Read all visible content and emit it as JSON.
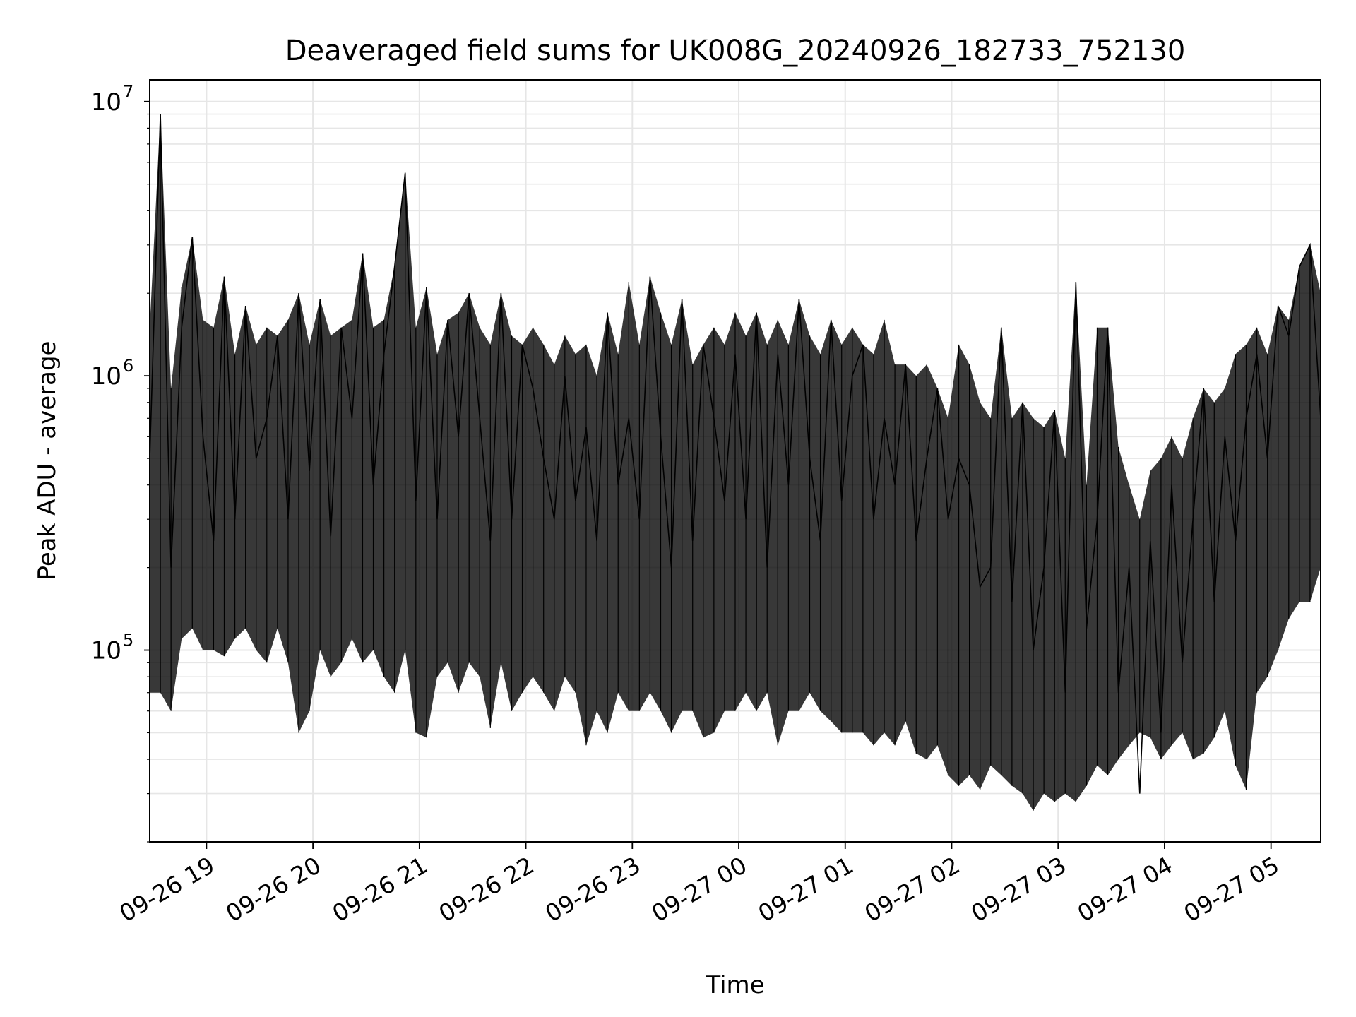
{
  "chart_data": {
    "type": "line",
    "title": "Deaveraged field sums for UK008G_20240926_182733_752130",
    "xlabel": "Time",
    "ylabel": "Peak ADU - average",
    "yscale": "log",
    "ylim": [
      20000,
      12000000
    ],
    "xlim": [
      "2024-09-26T18:28:00",
      "2024-09-27T05:28:00"
    ],
    "grid": true,
    "line_color": "#000000",
    "grid_color": "#e6e6e6",
    "x_ticks": [
      {
        "t": "2024-09-26T19:00:00",
        "label": "09-26 19"
      },
      {
        "t": "2024-09-26T20:00:00",
        "label": "09-26 20"
      },
      {
        "t": "2024-09-26T21:00:00",
        "label": "09-26 21"
      },
      {
        "t": "2024-09-26T22:00:00",
        "label": "09-26 22"
      },
      {
        "t": "2024-09-26T23:00:00",
        "label": "09-26 23"
      },
      {
        "t": "2024-09-27T00:00:00",
        "label": "09-27 00"
      },
      {
        "t": "2024-09-27T01:00:00",
        "label": "09-27 01"
      },
      {
        "t": "2024-09-27T02:00:00",
        "label": "09-27 02"
      },
      {
        "t": "2024-09-27T03:00:00",
        "label": "09-27 03"
      },
      {
        "t": "2024-09-27T04:00:00",
        "label": "09-27 04"
      },
      {
        "t": "2024-09-27T05:00:00",
        "label": "09-27 05"
      }
    ],
    "y_ticks": [
      {
        "value": 100000,
        "base": "10",
        "exp": "5"
      },
      {
        "value": 1000000,
        "base": "10",
        "exp": "6"
      },
      {
        "value": 10000000,
        "base": "10",
        "exp": "7"
      }
    ],
    "series": [
      {
        "x": [
          "2024-09-26T18:28:00",
          "2024-09-26T18:34:00",
          "2024-09-26T18:40:00",
          "2024-09-26T18:46:00",
          "2024-09-26T18:52:00",
          "2024-09-26T18:58:00",
          "2024-09-26T19:04:00",
          "2024-09-26T19:10:00",
          "2024-09-26T19:16:00",
          "2024-09-26T19:22:00",
          "2024-09-26T19:28:00",
          "2024-09-26T19:34:00",
          "2024-09-26T19:40:00",
          "2024-09-26T19:46:00",
          "2024-09-26T19:52:00",
          "2024-09-26T19:58:00",
          "2024-09-26T20:04:00",
          "2024-09-26T20:10:00",
          "2024-09-26T20:16:00",
          "2024-09-26T20:22:00",
          "2024-09-26T20:28:00",
          "2024-09-26T20:34:00",
          "2024-09-26T20:40:00",
          "2024-09-26T20:46:00",
          "2024-09-26T20:52:00",
          "2024-09-26T20:58:00",
          "2024-09-26T21:04:00",
          "2024-09-26T21:10:00",
          "2024-09-26T21:16:00",
          "2024-09-26T21:22:00",
          "2024-09-26T21:28:00",
          "2024-09-26T21:34:00",
          "2024-09-26T21:40:00",
          "2024-09-26T21:46:00",
          "2024-09-26T21:52:00",
          "2024-09-26T21:58:00",
          "2024-09-26T22:04:00",
          "2024-09-26T22:10:00",
          "2024-09-26T22:16:00",
          "2024-09-26T22:22:00",
          "2024-09-26T22:28:00",
          "2024-09-26T22:34:00",
          "2024-09-26T22:40:00",
          "2024-09-26T22:46:00",
          "2024-09-26T22:52:00",
          "2024-09-26T22:58:00",
          "2024-09-26T23:04:00",
          "2024-09-26T23:10:00",
          "2024-09-26T23:16:00",
          "2024-09-26T23:22:00",
          "2024-09-26T23:28:00",
          "2024-09-26T23:34:00",
          "2024-09-26T23:40:00",
          "2024-09-26T23:46:00",
          "2024-09-26T23:52:00",
          "2024-09-26T23:58:00",
          "2024-09-27T00:04:00",
          "2024-09-27T00:10:00",
          "2024-09-27T00:16:00",
          "2024-09-27T00:22:00",
          "2024-09-27T00:28:00",
          "2024-09-27T00:34:00",
          "2024-09-27T00:40:00",
          "2024-09-27T00:46:00",
          "2024-09-27T00:52:00",
          "2024-09-27T00:58:00",
          "2024-09-27T01:04:00",
          "2024-09-27T01:10:00",
          "2024-09-27T01:16:00",
          "2024-09-27T01:22:00",
          "2024-09-27T01:28:00",
          "2024-09-27T01:34:00",
          "2024-09-27T01:40:00",
          "2024-09-27T01:46:00",
          "2024-09-27T01:52:00",
          "2024-09-27T01:58:00",
          "2024-09-27T02:04:00",
          "2024-09-27T02:10:00",
          "2024-09-27T02:16:00",
          "2024-09-27T02:22:00",
          "2024-09-27T02:28:00",
          "2024-09-27T02:34:00",
          "2024-09-27T02:40:00",
          "2024-09-27T02:46:00",
          "2024-09-27T02:52:00",
          "2024-09-27T02:58:00",
          "2024-09-27T03:04:00",
          "2024-09-27T03:10:00",
          "2024-09-27T03:16:00",
          "2024-09-27T03:22:00",
          "2024-09-27T03:28:00",
          "2024-09-27T03:34:00",
          "2024-09-27T03:40:00",
          "2024-09-27T03:46:00",
          "2024-09-27T03:52:00",
          "2024-09-27T03:58:00",
          "2024-09-27T04:04:00",
          "2024-09-27T04:10:00",
          "2024-09-27T04:16:00",
          "2024-09-27T04:22:00",
          "2024-09-27T04:28:00",
          "2024-09-27T04:34:00",
          "2024-09-27T04:40:00",
          "2024-09-27T04:46:00",
          "2024-09-27T04:52:00",
          "2024-09-27T04:58:00",
          "2024-09-27T05:04:00",
          "2024-09-27T05:10:00",
          "2024-09-27T05:16:00",
          "2024-09-27T05:22:00",
          "2024-09-27T05:28:00"
        ],
        "y": [
          500000,
          9000000,
          200000,
          1500000,
          3200000,
          600000,
          250000,
          2300000,
          300000,
          1800000,
          500000,
          700000,
          1400000,
          300000,
          2000000,
          450000,
          1900000,
          260000,
          1500000,
          700000,
          2800000,
          400000,
          1200000,
          2500000,
          5500000,
          350000,
          2100000,
          300000,
          1600000,
          600000,
          2000000,
          700000,
          250000,
          2000000,
          300000,
          1300000,
          900000,
          500000,
          300000,
          1000000,
          350000,
          650000,
          250000,
          1700000,
          400000,
          700000,
          300000,
          2300000,
          600000,
          200000,
          1900000,
          250000,
          1300000,
          700000,
          350000,
          1200000,
          300000,
          1700000,
          200000,
          1200000,
          400000,
          1900000,
          500000,
          250000,
          1600000,
          350000,
          1000000,
          1300000,
          300000,
          700000,
          400000,
          1100000,
          250000,
          500000,
          900000,
          300000,
          500000,
          400000,
          170000,
          200000,
          1500000,
          150000,
          800000,
          100000,
          200000,
          750000,
          70000,
          2200000,
          120000,
          300000,
          1500000,
          70000,
          200000,
          30000,
          250000,
          50000,
          400000,
          90000,
          300000,
          900000,
          150000,
          600000,
          250000,
          700000,
          1200000,
          500000,
          1800000,
          1400000,
          2500000,
          3000000,
          700000
        ],
        "y_upper": [
          1500000,
          9000000,
          900000,
          2100000,
          3200000,
          1600000,
          1500000,
          2300000,
          1200000,
          1800000,
          1300000,
          1500000,
          1400000,
          1600000,
          2000000,
          1300000,
          1900000,
          1400000,
          1500000,
          1600000,
          2800000,
          1500000,
          1600000,
          2500000,
          5500000,
          1500000,
          2100000,
          1200000,
          1600000,
          1700000,
          2000000,
          1500000,
          1300000,
          2000000,
          1400000,
          1300000,
          1500000,
          1300000,
          1100000,
          1400000,
          1200000,
          1300000,
          1000000,
          1700000,
          1200000,
          2200000,
          1300000,
          2300000,
          1700000,
          1300000,
          1900000,
          1100000,
          1300000,
          1500000,
          1300000,
          1700000,
          1400000,
          1700000,
          1300000,
          1600000,
          1300000,
          1900000,
          1400000,
          1200000,
          1600000,
          1300000,
          1500000,
          1300000,
          1200000,
          1600000,
          1100000,
          1100000,
          1000000,
          1100000,
          900000,
          700000,
          1300000,
          1100000,
          800000,
          700000,
          1500000,
          700000,
          800000,
          700000,
          650000,
          750000,
          500000,
          2200000,
          400000,
          1500000,
          1500000,
          550000,
          400000,
          300000,
          450000,
          500000,
          600000,
          500000,
          700000,
          900000,
          800000,
          900000,
          1200000,
          1300000,
          1500000,
          1200000,
          1800000,
          1600000,
          2500000,
          3000000,
          2000000
        ],
        "y_lower": [
          70000,
          70000,
          60000,
          110000,
          120000,
          100000,
          100000,
          95000,
          110000,
          120000,
          100000,
          90000,
          120000,
          90000,
          50000,
          60000,
          100000,
          80000,
          90000,
          110000,
          90000,
          100000,
          80000,
          70000,
          100000,
          50000,
          48000,
          80000,
          90000,
          70000,
          90000,
          80000,
          52000,
          90000,
          60000,
          70000,
          80000,
          70000,
          60000,
          80000,
          70000,
          45000,
          60000,
          50000,
          70000,
          60000,
          60000,
          70000,
          60000,
          50000,
          60000,
          60000,
          48000,
          50000,
          60000,
          60000,
          70000,
          60000,
          70000,
          45000,
          60000,
          60000,
          70000,
          60000,
          55000,
          50000,
          50000,
          50000,
          45000,
          50000,
          45000,
          55000,
          42000,
          40000,
          45000,
          35000,
          32000,
          35000,
          31000,
          38000,
          35000,
          32000,
          30000,
          26000,
          30000,
          28000,
          30000,
          28000,
          32000,
          38000,
          35000,
          40000,
          45000,
          50000,
          48000,
          40000,
          45000,
          50000,
          40000,
          42000,
          48000,
          60000,
          38000,
          31000,
          70000,
          80000,
          100000,
          130000,
          150000,
          150000,
          200000
        ]
      }
    ]
  }
}
